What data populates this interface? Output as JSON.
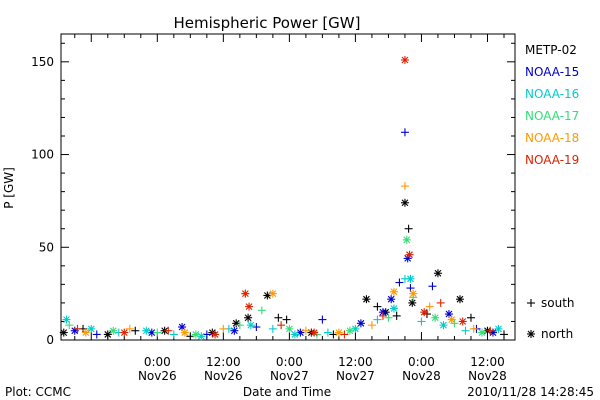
{
  "chart_data": {
    "type": "scatter",
    "title": "Hemispheric Power [GW]",
    "xlabel": "Date and Time",
    "ylabel": "P [GW]",
    "ylim": [
      0,
      165
    ],
    "yticks": [
      0,
      50,
      100,
      150
    ],
    "xlim": [
      "2010-11-25T06:30",
      "2010-11-28T17:00"
    ],
    "xticks": [
      {
        "time": "2010-11-26T00:00",
        "line1": "0:00",
        "line2": "Nov26"
      },
      {
        "time": "2010-11-26T12:00",
        "line1": "12:00",
        "line2": "Nov26"
      },
      {
        "time": "2010-11-27T00:00",
        "line1": "0:00",
        "line2": "Nov27"
      },
      {
        "time": "2010-11-27T12:00",
        "line1": "12:00",
        "line2": "Nov27"
      },
      {
        "time": "2010-11-28T00:00",
        "line1": "0:00",
        "line2": "Nov28"
      },
      {
        "time": "2010-11-28T12:00",
        "line1": "12:00",
        "line2": "Nov28"
      }
    ],
    "marker_legend": [
      {
        "symbol": "+",
        "label": "south"
      },
      {
        "symbol": "*",
        "label": "north"
      }
    ],
    "series": [
      {
        "name": "METP-02",
        "color": "#000000",
        "points": [
          [
            "2010-11-25T07:00",
            4,
            "*"
          ],
          [
            "2010-11-25T10:30",
            6,
            "+"
          ],
          [
            "2010-11-25T15:00",
            3,
            "*"
          ],
          [
            "2010-11-25T20:00",
            5,
            "+"
          ],
          [
            "2010-11-26T01:20",
            5,
            "*"
          ],
          [
            "2010-11-26T06:00",
            2,
            "+"
          ],
          [
            "2010-11-26T10:00",
            4,
            "*"
          ],
          [
            "2010-11-26T14:20",
            9,
            "*"
          ],
          [
            "2010-11-26T16:30",
            12,
            "*"
          ],
          [
            "2010-11-26T20:00",
            24,
            "*"
          ],
          [
            "2010-11-26T22:00",
            12,
            "+"
          ],
          [
            "2010-11-26T23:30",
            11,
            "+"
          ],
          [
            "2010-11-27T04:00",
            4,
            "*"
          ],
          [
            "2010-11-27T08:00",
            3,
            "+"
          ],
          [
            "2010-11-27T14:00",
            22,
            "*"
          ],
          [
            "2010-11-27T16:00",
            18,
            "+"
          ],
          [
            "2010-11-27T17:30",
            15,
            "*"
          ],
          [
            "2010-11-27T19:30",
            13,
            "+"
          ],
          [
            "2010-11-27T21:00",
            74,
            "*"
          ],
          [
            "2010-11-27T21:40",
            60,
            "+"
          ],
          [
            "2010-11-27T22:20",
            20,
            "*"
          ],
          [
            "2010-11-28T01:00",
            14,
            "+"
          ],
          [
            "2010-11-28T03:00",
            36,
            "*"
          ],
          [
            "2010-11-28T07:00",
            22,
            "*"
          ],
          [
            "2010-11-28T09:00",
            12,
            "+"
          ],
          [
            "2010-11-28T12:00",
            5,
            "*"
          ],
          [
            "2010-11-28T15:00",
            3,
            "+"
          ]
        ]
      },
      {
        "name": "NOAA-15",
        "color": "#0000cc",
        "points": [
          [
            "2010-11-25T09:00",
            5,
            "*"
          ],
          [
            "2010-11-25T13:00",
            3,
            "+"
          ],
          [
            "2010-11-25T23:00",
            4,
            "*"
          ],
          [
            "2010-11-26T04:30",
            7,
            "*"
          ],
          [
            "2010-11-26T09:00",
            3,
            "+"
          ],
          [
            "2010-11-26T14:00",
            5,
            "*"
          ],
          [
            "2010-11-26T18:00",
            7,
            "+"
          ],
          [
            "2010-11-27T02:00",
            4,
            "*"
          ],
          [
            "2010-11-27T06:00",
            11,
            "+"
          ],
          [
            "2010-11-27T13:00",
            9,
            "*"
          ],
          [
            "2010-11-27T17:00",
            15,
            "*"
          ],
          [
            "2010-11-27T18:30",
            22,
            "*"
          ],
          [
            "2010-11-27T20:00",
            31,
            "+"
          ],
          [
            "2010-11-27T21:00",
            112,
            "+"
          ],
          [
            "2010-11-27T21:30",
            44,
            "*"
          ],
          [
            "2010-11-27T22:00",
            28,
            "+"
          ],
          [
            "2010-11-28T02:00",
            29,
            "+"
          ],
          [
            "2010-11-28T05:00",
            14,
            "*"
          ],
          [
            "2010-11-28T10:00",
            6,
            "+"
          ],
          [
            "2010-11-28T13:00",
            4,
            "*"
          ]
        ]
      },
      {
        "name": "NOAA-16",
        "color": "#00cccc",
        "points": [
          [
            "2010-11-25T07:30",
            11,
            "*"
          ],
          [
            "2010-11-25T12:00",
            6,
            "*"
          ],
          [
            "2010-11-25T17:00",
            4,
            "+"
          ],
          [
            "2010-11-25T22:00",
            5,
            "*"
          ],
          [
            "2010-11-26T03:00",
            3,
            "+"
          ],
          [
            "2010-11-26T08:00",
            2,
            "*"
          ],
          [
            "2010-11-26T13:00",
            6,
            "+"
          ],
          [
            "2010-11-26T17:00",
            8,
            "*"
          ],
          [
            "2010-11-26T21:00",
            6,
            "+"
          ],
          [
            "2010-11-27T01:00",
            3,
            "*"
          ],
          [
            "2010-11-27T07:00",
            4,
            "+"
          ],
          [
            "2010-11-27T12:00",
            6,
            "*"
          ],
          [
            "2010-11-27T16:00",
            11,
            "+"
          ],
          [
            "2010-11-27T19:00",
            17,
            "*"
          ],
          [
            "2010-11-27T21:00",
            33,
            "+"
          ],
          [
            "2010-11-27T22:00",
            33,
            "*"
          ],
          [
            "2010-11-28T00:00",
            10,
            "+"
          ],
          [
            "2010-11-28T04:00",
            8,
            "*"
          ],
          [
            "2010-11-28T08:00",
            5,
            "+"
          ],
          [
            "2010-11-28T14:00",
            6,
            "*"
          ]
        ]
      },
      {
        "name": "NOAA-17",
        "color": "#33dd77",
        "points": [
          [
            "2010-11-25T08:00",
            8,
            "+"
          ],
          [
            "2010-11-25T16:00",
            5,
            "*"
          ],
          [
            "2010-11-26T00:00",
            4,
            "+"
          ],
          [
            "2010-11-26T07:00",
            3,
            "*"
          ],
          [
            "2010-11-26T15:00",
            8,
            "+"
          ],
          [
            "2010-11-26T19:00",
            16,
            "+"
          ],
          [
            "2010-11-27T00:00",
            6,
            "*"
          ],
          [
            "2010-11-27T05:00",
            3,
            "+"
          ],
          [
            "2010-11-27T11:00",
            5,
            "*"
          ],
          [
            "2010-11-27T18:00",
            12,
            "+"
          ],
          [
            "2010-11-27T21:20",
            54,
            "*"
          ],
          [
            "2010-11-27T22:30",
            23,
            "+"
          ],
          [
            "2010-11-28T02:30",
            12,
            "*"
          ],
          [
            "2010-11-28T06:00",
            9,
            "+"
          ],
          [
            "2010-11-28T11:00",
            4,
            "*"
          ]
        ]
      },
      {
        "name": "NOAA-18",
        "color": "#ff9900",
        "points": [
          [
            "2010-11-25T11:00",
            4,
            "*"
          ],
          [
            "2010-11-25T19:00",
            6,
            "+"
          ],
          [
            "2010-11-26T05:00",
            4,
            "*"
          ],
          [
            "2010-11-26T12:00",
            6,
            "+"
          ],
          [
            "2010-11-26T16:00",
            25,
            "+"
          ],
          [
            "2010-11-26T21:00",
            25,
            "*"
          ],
          [
            "2010-11-27T03:00",
            5,
            "+"
          ],
          [
            "2010-11-27T09:00",
            4,
            "*"
          ],
          [
            "2010-11-27T15:00",
            8,
            "+"
          ],
          [
            "2010-11-27T19:00",
            26,
            "*"
          ],
          [
            "2010-11-27T21:00",
            83,
            "+"
          ],
          [
            "2010-11-27T22:30",
            25,
            "*"
          ],
          [
            "2010-11-28T01:30",
            18,
            "+"
          ],
          [
            "2010-11-28T05:30",
            11,
            "*"
          ],
          [
            "2010-11-28T09:30",
            6,
            "+"
          ]
        ]
      },
      {
        "name": "NOAA-19",
        "color": "#dd2200",
        "points": [
          [
            "2010-11-25T09:30",
            6,
            "+"
          ],
          [
            "2010-11-25T18:00",
            4,
            "*"
          ],
          [
            "2010-11-26T02:00",
            5,
            "+"
          ],
          [
            "2010-11-26T10:30",
            3,
            "*"
          ],
          [
            "2010-11-26T16:00",
            25,
            "*"
          ],
          [
            "2010-11-26T16:40",
            18,
            "*"
          ],
          [
            "2010-11-26T22:30",
            8,
            "+"
          ],
          [
            "2010-11-27T04:30",
            4,
            "*"
          ],
          [
            "2010-11-27T10:00",
            3,
            "+"
          ],
          [
            "2010-11-27T17:00",
            13,
            "+"
          ],
          [
            "2010-11-27T21:00",
            151,
            "*"
          ],
          [
            "2010-11-27T21:50",
            46,
            "*"
          ],
          [
            "2010-11-28T00:30",
            15,
            "*"
          ],
          [
            "2010-11-28T03:30",
            20,
            "+"
          ],
          [
            "2010-11-28T07:30",
            10,
            "*"
          ],
          [
            "2010-11-28T12:30",
            5,
            "+"
          ]
        ]
      }
    ]
  },
  "footer": {
    "left": "Plot: CCMC",
    "center": "Date and Time",
    "right": "2010/11/28 14:28:45"
  }
}
